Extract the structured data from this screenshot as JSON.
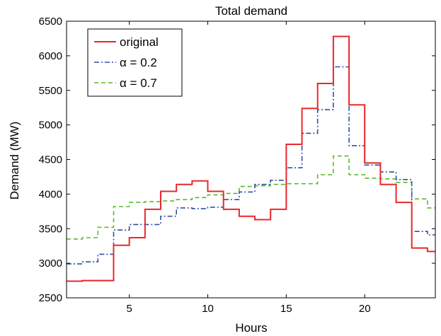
{
  "chart_data": {
    "type": "line",
    "step": true,
    "title": "Total demand",
    "xlabel": "Hours",
    "ylabel": "Demand (MW)",
    "xlim": [
      1,
      24.5
    ],
    "ylim": [
      2500,
      6500
    ],
    "xticks": [
      5,
      10,
      15,
      20
    ],
    "yticks": [
      2500,
      3000,
      3500,
      4000,
      4500,
      5000,
      5500,
      6000,
      6500
    ],
    "grid": false,
    "legend_position": "top-left",
    "x": [
      1,
      2,
      3,
      4,
      5,
      6,
      7,
      8,
      9,
      10,
      11,
      12,
      13,
      14,
      15,
      16,
      17,
      18,
      19,
      20,
      21,
      22,
      23,
      24
    ],
    "series": [
      {
        "name": "original",
        "color": "#e8282b",
        "dash": "solid",
        "values": [
          2740,
          2750,
          2750,
          3260,
          3370,
          3780,
          4040,
          4140,
          4190,
          4040,
          3780,
          3680,
          3630,
          3780,
          4720,
          5240,
          5600,
          6280,
          5290,
          4450,
          4140,
          3880,
          3220,
          3170
        ]
      },
      {
        "name": "α = 0.2",
        "color": "#2f50a8",
        "dash": "dashdot",
        "values": [
          2990,
          3020,
          3130,
          3480,
          3560,
          3560,
          3680,
          3800,
          3790,
          3810,
          3920,
          4030,
          4140,
          4200,
          4380,
          4880,
          5220,
          5840,
          4700,
          4420,
          4320,
          4210,
          3460,
          3410
        ]
      },
      {
        "name": "α = 0.7",
        "color": "#5cb82d",
        "dash": "dashed",
        "values": [
          3350,
          3370,
          3520,
          3820,
          3880,
          3890,
          3900,
          3920,
          3950,
          3990,
          4010,
          4110,
          4120,
          4140,
          4150,
          4150,
          4280,
          4550,
          4280,
          4230,
          4220,
          4170,
          3930,
          3800
        ]
      }
    ]
  }
}
